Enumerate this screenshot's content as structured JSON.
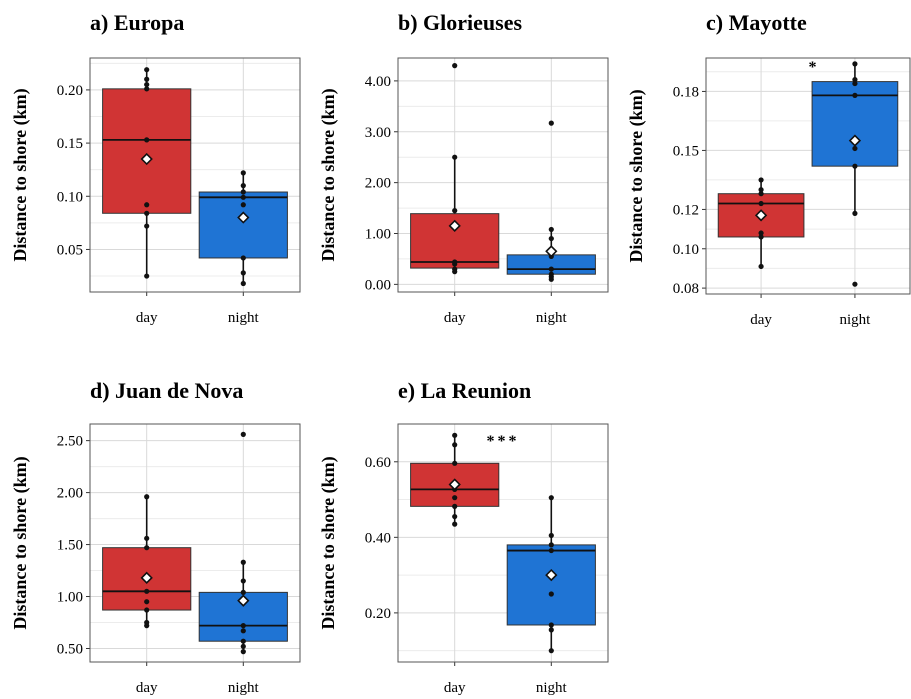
{
  "colors": {
    "day": "#d03434",
    "night": "#1f74d4",
    "grid": "#d9d9d9",
    "frame": "#555555"
  },
  "chart_data": [
    {
      "type": "box",
      "title": "a) Europa",
      "ylabel": "Distance to shore (km)",
      "categories": [
        "day",
        "night"
      ],
      "ylim": [
        0.01,
        0.23
      ],
      "yticks": [
        0.05,
        0.1,
        0.15,
        0.2
      ],
      "yticklabels": [
        "0.05",
        "0.10",
        "0.15",
        "0.20"
      ],
      "grid": true,
      "significance": "",
      "boxes": [
        {
          "category": "day",
          "min": 0.025,
          "q1": 0.084,
          "median": 0.153,
          "q3": 0.201,
          "max": 0.219,
          "mean": 0.135,
          "points": [
            0.025,
            0.072,
            0.084,
            0.092,
            0.153,
            0.201,
            0.205,
            0.21,
            0.219
          ]
        },
        {
          "category": "night",
          "min": 0.018,
          "q1": 0.042,
          "median": 0.099,
          "q3": 0.104,
          "max": 0.122,
          "mean": 0.08,
          "points": [
            0.018,
            0.028,
            0.042,
            0.079,
            0.092,
            0.099,
            0.104,
            0.11,
            0.122
          ]
        }
      ]
    },
    {
      "type": "box",
      "title": "b) Glorieuses",
      "ylabel": "Distance to shore (km)",
      "categories": [
        "day",
        "night"
      ],
      "ylim": [
        -0.15,
        4.45
      ],
      "yticks": [
        0,
        1,
        2,
        3,
        4
      ],
      "yticklabels": [
        "0.00",
        "1.00",
        "2.00",
        "3.00",
        "4.00"
      ],
      "grid": true,
      "significance": "",
      "boxes": [
        {
          "category": "day",
          "min": 0.25,
          "q1": 0.32,
          "median": 0.44,
          "q3": 1.39,
          "max": 2.5,
          "mean": 1.15,
          "points": [
            0.25,
            0.3,
            0.4,
            0.44,
            1.45,
            2.5,
            4.3
          ]
        },
        {
          "category": "night",
          "min": 0.1,
          "q1": 0.2,
          "median": 0.3,
          "q3": 0.58,
          "max": 1.08,
          "mean": 0.65,
          "points": [
            0.1,
            0.15,
            0.2,
            0.3,
            0.55,
            0.9,
            1.08,
            3.17
          ]
        }
      ]
    },
    {
      "type": "box",
      "title": "c) Mayotte",
      "ylabel": "Distance to shore (km)",
      "categories": [
        "day",
        "night"
      ],
      "ylim": [
        0.077,
        0.197
      ],
      "yticks": [
        0.08,
        0.1,
        0.12,
        0.15,
        0.18
      ],
      "yticklabels": [
        "0.08",
        "0.10",
        "0.12",
        "0.15",
        "0.18"
      ],
      "grid": true,
      "significance": "*",
      "boxes": [
        {
          "category": "day",
          "min": 0.091,
          "q1": 0.106,
          "median": 0.123,
          "q3": 0.128,
          "max": 0.135,
          "mean": 0.117,
          "points": [
            0.091,
            0.106,
            0.108,
            0.118,
            0.123,
            0.128,
            0.13,
            0.135
          ]
        },
        {
          "category": "night",
          "min": 0.118,
          "q1": 0.142,
          "median": 0.178,
          "q3": 0.185,
          "max": 0.194,
          "mean": 0.155,
          "points": [
            0.082,
            0.118,
            0.142,
            0.151,
            0.178,
            0.184,
            0.186,
            0.194
          ]
        }
      ]
    },
    {
      "type": "box",
      "title": "d) Juan de Nova",
      "ylabel": "Distance to shore (km)",
      "categories": [
        "day",
        "night"
      ],
      "ylim": [
        0.37,
        2.66
      ],
      "yticks": [
        0.5,
        1,
        1.5,
        2,
        2.5
      ],
      "yticklabels": [
        "0.50",
        "1.00",
        "1.50",
        "2.00",
        "2.50"
      ],
      "grid": true,
      "significance": "",
      "boxes": [
        {
          "category": "day",
          "min": 0.72,
          "q1": 0.87,
          "median": 1.05,
          "q3": 1.47,
          "max": 1.96,
          "mean": 1.18,
          "points": [
            0.72,
            0.75,
            0.87,
            0.95,
            1.05,
            1.47,
            1.56,
            1.96
          ]
        },
        {
          "category": "night",
          "min": 0.47,
          "q1": 0.57,
          "median": 0.72,
          "q3": 1.04,
          "max": 1.33,
          "mean": 0.96,
          "points": [
            0.47,
            0.52,
            0.57,
            0.67,
            0.72,
            1.04,
            1.15,
            1.33,
            2.56
          ]
        }
      ]
    },
    {
      "type": "box",
      "title": "e) La Reunion",
      "ylabel": "Distance to shore (km)",
      "categories": [
        "day",
        "night"
      ],
      "ylim": [
        0.07,
        0.7
      ],
      "yticks": [
        0.2,
        0.4,
        0.6
      ],
      "yticklabels": [
        "0.20",
        "0.40",
        "0.60"
      ],
      "grid": true,
      "significance": "***",
      "boxes": [
        {
          "category": "day",
          "min": 0.435,
          "q1": 0.482,
          "median": 0.527,
          "q3": 0.596,
          "max": 0.67,
          "mean": 0.54,
          "points": [
            0.435,
            0.455,
            0.482,
            0.505,
            0.527,
            0.596,
            0.645,
            0.67
          ]
        },
        {
          "category": "night",
          "min": 0.1,
          "q1": 0.168,
          "median": 0.365,
          "q3": 0.38,
          "max": 0.505,
          "mean": 0.3,
          "points": [
            0.1,
            0.155,
            0.168,
            0.25,
            0.365,
            0.38,
            0.405,
            0.505
          ]
        }
      ]
    }
  ]
}
